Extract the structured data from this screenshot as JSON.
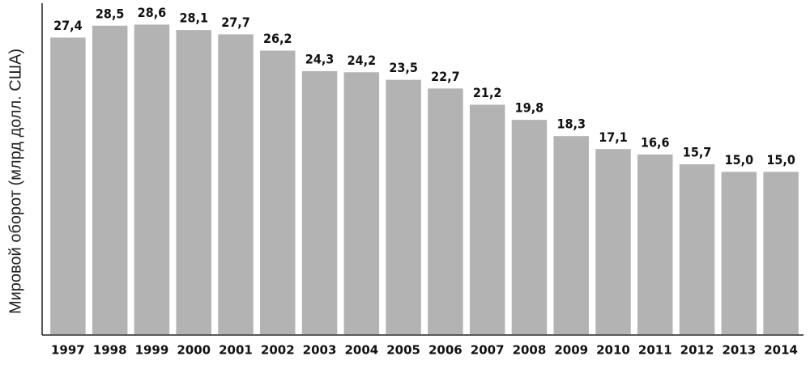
{
  "chart_data": {
    "type": "bar",
    "y_label": "Мировой оборот (млрд долл. США)",
    "categories": [
      "1997",
      "1998",
      "1999",
      "2000",
      "2001",
      "2002",
      "2003",
      "2004",
      "2005",
      "2006",
      "2007",
      "2008",
      "2009",
      "2010",
      "2011",
      "2012",
      "2013",
      "2014"
    ],
    "values": [
      27.4,
      28.5,
      28.6,
      28.1,
      27.7,
      26.2,
      24.3,
      24.2,
      23.5,
      22.7,
      21.2,
      19.8,
      18.3,
      17.1,
      16.6,
      15.7,
      15.0,
      15.0
    ],
    "value_labels": [
      "27,4",
      "28,5",
      "28,6",
      "28,1",
      "27,7",
      "26,2",
      "24,3",
      "24,2",
      "23,5",
      "22,7",
      "21,2",
      "19,8",
      "18,3",
      "17,1",
      "16,6",
      "15,7",
      "15,0",
      "15,0"
    ],
    "color": "#b3b3b3",
    "ylim": [
      0,
      30.5
    ]
  }
}
